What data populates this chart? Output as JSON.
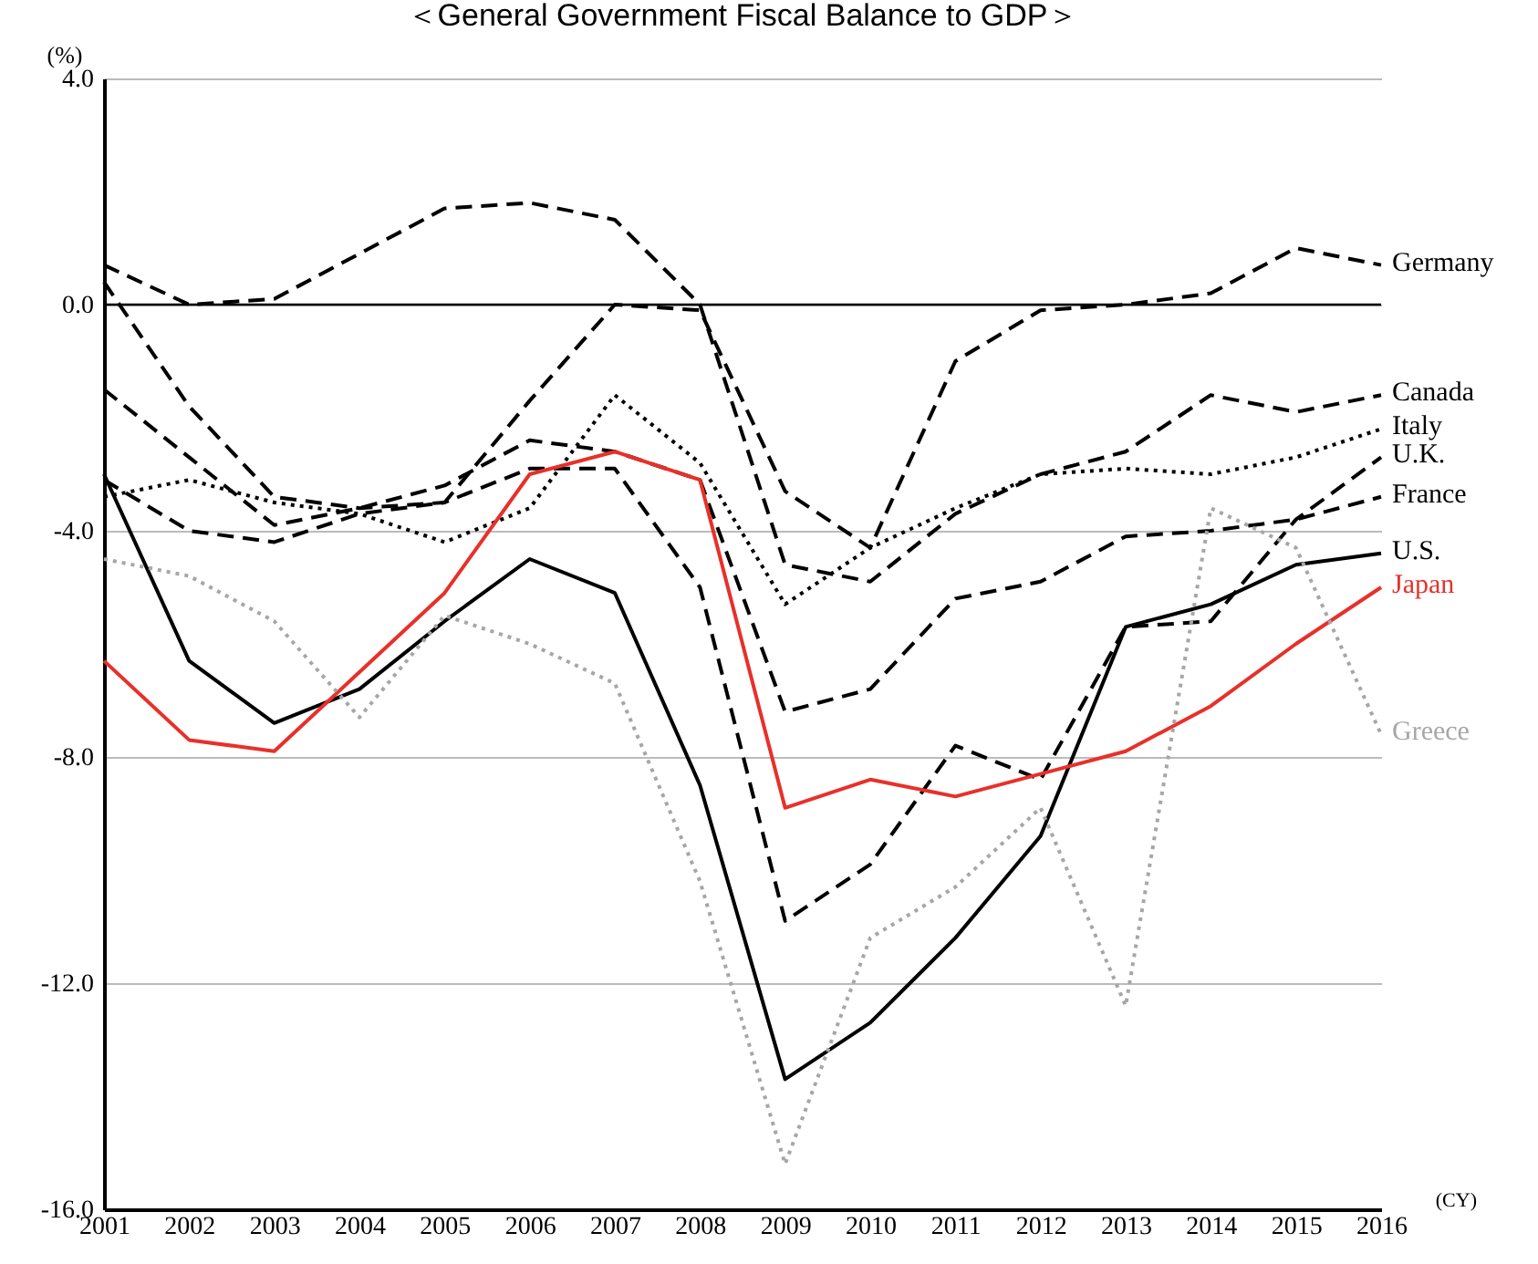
{
  "chart_data": {
    "type": "line",
    "title": "＜General Government Fiscal Balance to GDP＞",
    "ylabel": "(%)",
    "xlabel": "(CY)",
    "categories": [
      "2001",
      "2002",
      "2003",
      "2004",
      "2005",
      "2006",
      "2007",
      "2008",
      "2009",
      "2010",
      "2011",
      "2012",
      "2013",
      "2014",
      "2015",
      "2016"
    ],
    "ylim": [
      -16,
      4
    ],
    "yticks": [
      {
        "value": -16,
        "label": "-16.0"
      },
      {
        "value": -12,
        "label": "-12.0"
      },
      {
        "value": -8,
        "label": "-8.0"
      },
      {
        "value": -4,
        "label": "-4.0"
      },
      {
        "value": 0,
        "label": "0.0"
      },
      {
        "value": 4,
        "label": "4.0"
      }
    ],
    "grid": "y",
    "legend": false,
    "ref_lines": [
      {
        "axis": "y",
        "value": 0,
        "color": "#000000",
        "line_style": "solid"
      }
    ],
    "series": [
      {
        "name": "Germany",
        "color": "#000000",
        "line_style": "dashed",
        "values": [
          -3.1,
          -4.0,
          -4.2,
          -3.7,
          -3.5,
          -1.7,
          0.0,
          -0.1,
          -3.3,
          -4.3,
          -1.0,
          -0.1,
          0.0,
          0.2,
          1.0,
          0.7
        ]
      },
      {
        "name": "Canada",
        "color": "#000000",
        "line_style": "dashed",
        "values": [
          0.7,
          0.0,
          0.1,
          0.9,
          1.7,
          1.8,
          1.5,
          0.0,
          -4.6,
          -4.9,
          -3.7,
          -3.0,
          -2.6,
          -1.6,
          -1.9,
          -1.6
        ]
      },
      {
        "name": "Italy",
        "color": "#000000",
        "line_style": "dotted",
        "values": [
          -3.4,
          -3.1,
          -3.5,
          -3.7,
          -4.2,
          -3.6,
          -1.6,
          -2.8,
          -5.3,
          -4.3,
          -3.6,
          -3.0,
          -2.9,
          -3.0,
          -2.7,
          -2.2
        ]
      },
      {
        "name": "U.K.",
        "color": "#000000",
        "line_style": "dashed",
        "values": [
          0.4,
          -1.8,
          -3.4,
          -3.6,
          -3.5,
          -2.9,
          -2.9,
          -5.0,
          -10.9,
          -9.9,
          -7.8,
          -8.4,
          -5.7,
          -5.6,
          -3.8,
          -2.7
        ]
      },
      {
        "name": "France",
        "color": "#000000",
        "line_style": "dashed",
        "values": [
          -1.5,
          -2.7,
          -3.9,
          -3.6,
          -3.2,
          -2.4,
          -2.6,
          -3.1,
          -7.2,
          -6.8,
          -5.2,
          -4.9,
          -4.1,
          -4.0,
          -3.8,
          -3.4
        ]
      },
      {
        "name": "U.S.",
        "color": "#000000",
        "line_style": "solid",
        "values": [
          -3.0,
          -6.3,
          -7.4,
          -6.8,
          -5.6,
          -4.5,
          -5.1,
          -8.5,
          -13.7,
          -12.7,
          -11.2,
          -9.4,
          -5.7,
          -5.3,
          -4.6,
          -4.4
        ]
      },
      {
        "name": "Japan",
        "color": "#e8302a",
        "line_style": "solid",
        "values": [
          -6.3,
          -7.7,
          -7.9,
          -6.5,
          -5.1,
          -3.0,
          -2.6,
          -3.1,
          -8.9,
          -8.4,
          -8.7,
          -8.3,
          -7.9,
          -7.1,
          -6.0,
          -5.0
        ]
      },
      {
        "name": "Greece",
        "color": "#a6a6a6",
        "line_style": "dotted",
        "values": [
          -4.5,
          -4.8,
          -5.6,
          -7.3,
          -5.5,
          -6.0,
          -6.7,
          -10.2,
          -15.2,
          -11.2,
          -10.3,
          -8.9,
          -12.4,
          -3.6,
          -4.3,
          -7.6
        ]
      }
    ]
  }
}
